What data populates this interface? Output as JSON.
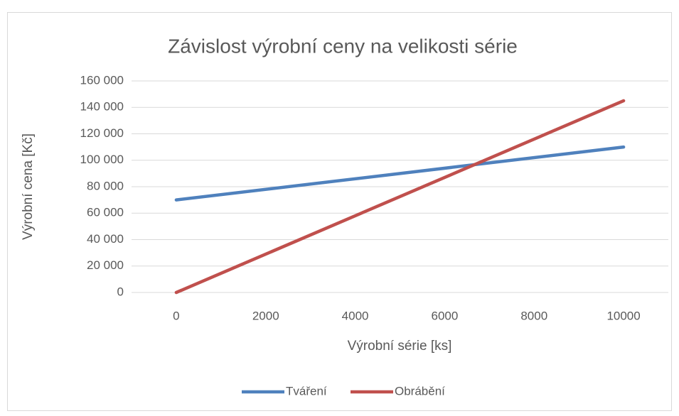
{
  "chart_data": {
    "type": "line",
    "title": "Závislost výrobní ceny na velikosti série",
    "x_label": "Výrobní série [ks]",
    "y_label": "Výrobní cena [Kč]",
    "x": [
      0,
      10000
    ],
    "series": [
      {
        "name": "Tváření",
        "color": "#4f81bd",
        "values": [
          70000,
          110000
        ]
      },
      {
        "name": "Obrábění",
        "color": "#c0504d",
        "values": [
          0,
          145000
        ]
      }
    ],
    "xlim": [
      -1000,
      11000
    ],
    "xticks": [
      0,
      2000,
      4000,
      6000,
      8000,
      10000
    ],
    "ylim": [
      0,
      160000
    ],
    "yticks": [
      0,
      {
        "value": 20000,
        "label": "20 000"
      },
      {
        "value": 40000,
        "label": "40 000"
      },
      {
        "value": 60000,
        "label": "60 000"
      },
      {
        "value": 80000,
        "label": "80 000"
      },
      {
        "value": 100000,
        "label": "100 000"
      },
      {
        "value": 120000,
        "label": "120 000"
      },
      {
        "value": 140000,
        "label": "140 000"
      },
      {
        "value": 160000,
        "label": "160 000"
      }
    ],
    "grid": true,
    "legend": "bottom"
  }
}
